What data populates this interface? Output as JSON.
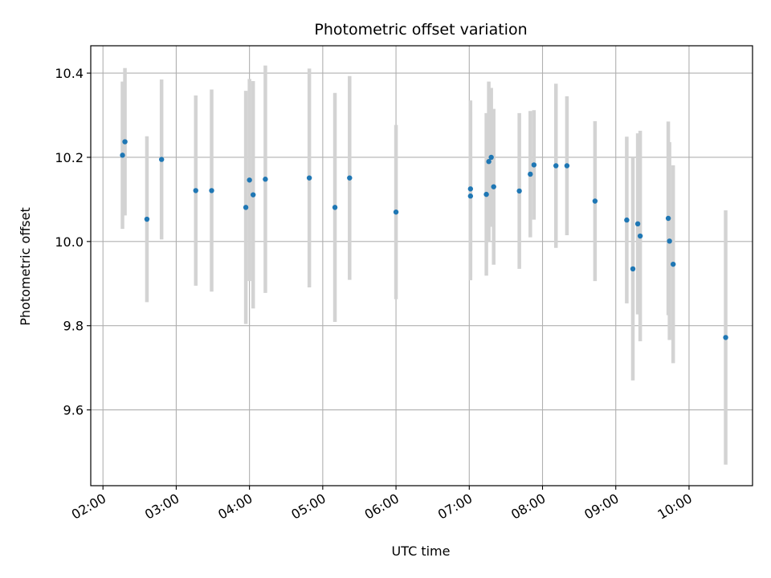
{
  "chart_data": {
    "type": "scatter",
    "title": "Photometric offset variation",
    "xlabel": "UTC time",
    "ylabel": "Photometric offset",
    "x_unit": "UTC",
    "xlim": [
      "01:50",
      "10:52"
    ],
    "ylim": [
      9.42,
      10.465
    ],
    "xticks": [
      "02:00",
      "03:00",
      "04:00",
      "05:00",
      "06:00",
      "07:00",
      "08:00",
      "09:00",
      "10:00"
    ],
    "yticks": [
      "9.6",
      "9.8",
      "10.0",
      "10.2",
      "10.4"
    ],
    "grid": true,
    "colors": {
      "point": "#1f77b4",
      "errorbar": "#d3d3d3",
      "grid": "#b0b0b0"
    },
    "series": [
      {
        "points": [
          {
            "x": "02:16",
            "y": 10.205,
            "err": 0.175
          },
          {
            "x": "02:18",
            "y": 10.237,
            "err": 0.175
          },
          {
            "x": "02:36",
            "y": 10.053,
            "err": 0.197
          },
          {
            "x": "02:48",
            "y": 10.195,
            "err": 0.19
          },
          {
            "x": "03:16",
            "y": 10.121,
            "err": 0.226
          },
          {
            "x": "03:29",
            "y": 10.121,
            "err": 0.24
          },
          {
            "x": "03:57",
            "y": 10.081,
            "err": 0.277
          },
          {
            "x": "04:00",
            "y": 10.146,
            "err": 0.24
          },
          {
            "x": "04:03",
            "y": 10.111,
            "err": 0.27
          },
          {
            "x": "04:13",
            "y": 10.148,
            "err": 0.27
          },
          {
            "x": "04:49",
            "y": 10.151,
            "err": 0.26
          },
          {
            "x": "05:10",
            "y": 10.081,
            "err": 0.272
          },
          {
            "x": "05:22",
            "y": 10.151,
            "err": 0.242
          },
          {
            "x": "06:00",
            "y": 10.07,
            "err": 0.207
          },
          {
            "x": "07:01",
            "y": 10.125,
            "err": 0.21
          },
          {
            "x": "07:01",
            "y": 10.108,
            "err": 0.2
          },
          {
            "x": "07:14",
            "y": 10.112,
            "err": 0.193
          },
          {
            "x": "07:16",
            "y": 10.19,
            "err": 0.19
          },
          {
            "x": "07:18",
            "y": 10.2,
            "err": 0.165
          },
          {
            "x": "07:20",
            "y": 10.13,
            "err": 0.185
          },
          {
            "x": "07:41",
            "y": 10.12,
            "err": 0.185
          },
          {
            "x": "07:50",
            "y": 10.16,
            "err": 0.15
          },
          {
            "x": "07:53",
            "y": 10.182,
            "err": 0.13
          },
          {
            "x": "08:11",
            "y": 10.18,
            "err": 0.195
          },
          {
            "x": "08:20",
            "y": 10.18,
            "err": 0.165
          },
          {
            "x": "08:43",
            "y": 10.096,
            "err": 0.19
          },
          {
            "x": "09:09",
            "y": 10.051,
            "err": 0.198
          },
          {
            "x": "09:14",
            "y": 9.935,
            "err": 0.265
          },
          {
            "x": "09:18",
            "y": 10.042,
            "err": 0.215
          },
          {
            "x": "09:20",
            "y": 10.013,
            "err": 0.25
          },
          {
            "x": "09:43",
            "y": 10.055,
            "err": 0.23
          },
          {
            "x": "09:44",
            "y": 10.001,
            "err": 0.235
          },
          {
            "x": "09:47",
            "y": 9.946,
            "err": 0.235
          },
          {
            "x": "10:30",
            "y": 9.772,
            "err": 0.302
          }
        ]
      }
    ]
  }
}
